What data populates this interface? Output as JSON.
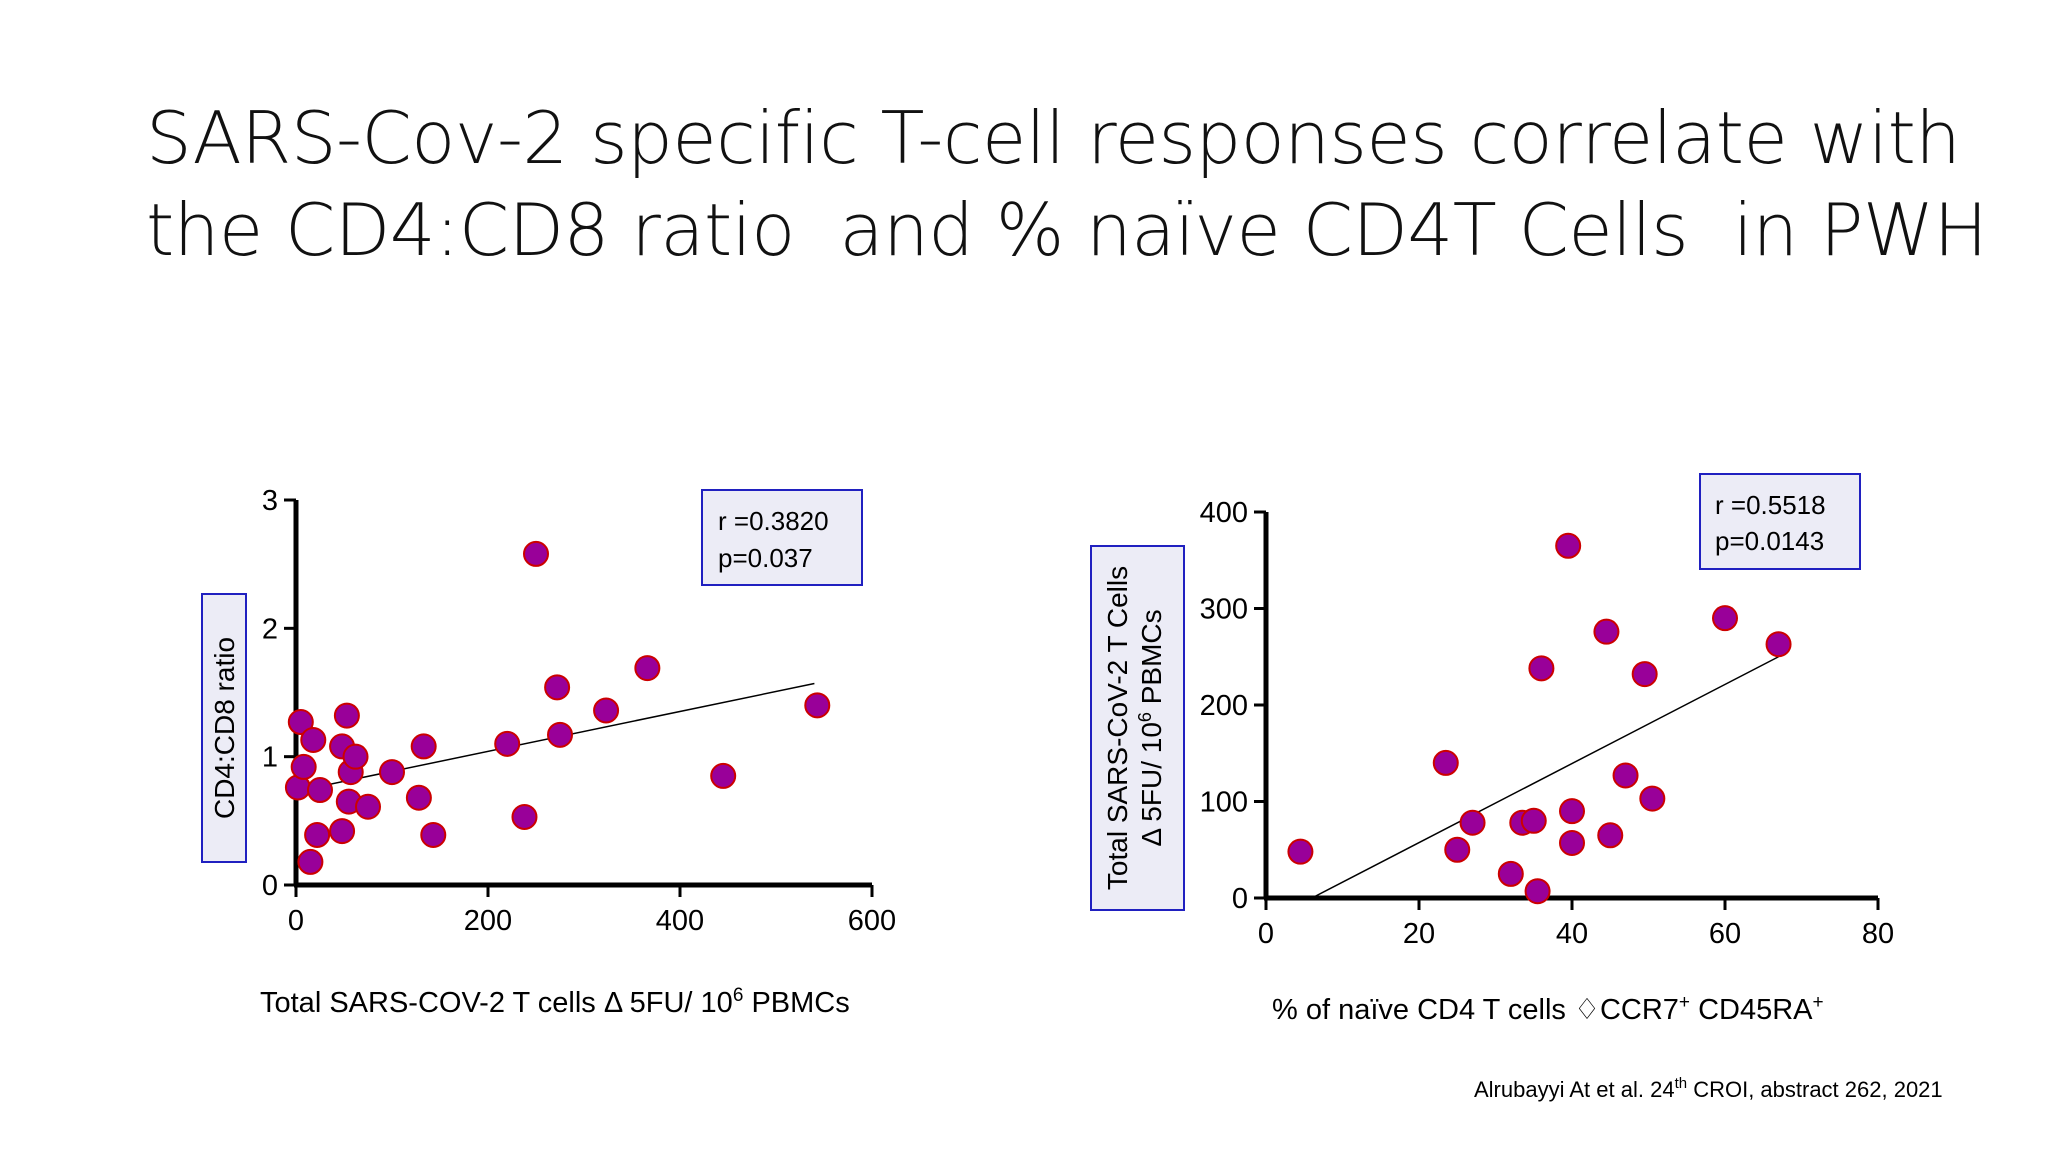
{
  "slide": {
    "title_lines": [
      "SARS-Cov-2 specific T-cell responses correlate with",
      "the CD4:CD8 ratio  and % naïve CD4T Cells  in PWH"
    ],
    "citation": {
      "prefix": "Alrubayyi At et al. 24",
      "sup": "th",
      "suffix": " CROI, abstract 262,  2021"
    }
  },
  "colors": {
    "point_fill": "#990099",
    "point_stroke": "#cc0000",
    "stat_box_border": "#2020c0",
    "stat_box_fill": "#ececf6",
    "trend_line": "#000000",
    "axis": "#000000"
  },
  "chart_data": [
    {
      "type": "scatter",
      "xlabel": {
        "text": "Total SARS-COV-2 T cells Δ 5FU/ 10",
        "sup": "6",
        "suffix": " PBMCs"
      },
      "ylabel": "CD4:CD8 ratio",
      "xlim": [
        0,
        600
      ],
      "ylim": [
        0,
        3
      ],
      "xticks": [
        0,
        200,
        400,
        600
      ],
      "yticks": [
        0,
        1,
        2,
        3
      ],
      "annotation": [
        "r =0.3820",
        "p=0.037"
      ],
      "trendline": {
        "x": [
          0,
          540
        ],
        "y": [
          0.73,
          1.57
        ]
      },
      "points": [
        {
          "x": 2,
          "y": 0.76
        },
        {
          "x": 5,
          "y": 1.27
        },
        {
          "x": 8,
          "y": 0.92
        },
        {
          "x": 15,
          "y": 0.18
        },
        {
          "x": 18,
          "y": 1.13
        },
        {
          "x": 22,
          "y": 0.39
        },
        {
          "x": 25,
          "y": 0.74
        },
        {
          "x": 48,
          "y": 0.42
        },
        {
          "x": 48,
          "y": 1.08
        },
        {
          "x": 53,
          "y": 1.32
        },
        {
          "x": 55,
          "y": 0.65
        },
        {
          "x": 57,
          "y": 0.88
        },
        {
          "x": 62,
          "y": 1.0
        },
        {
          "x": 75,
          "y": 0.61
        },
        {
          "x": 100,
          "y": 0.88
        },
        {
          "x": 128,
          "y": 0.68
        },
        {
          "x": 133,
          "y": 1.08
        },
        {
          "x": 143,
          "y": 0.39
        },
        {
          "x": 220,
          "y": 1.1
        },
        {
          "x": 238,
          "y": 0.53
        },
        {
          "x": 250,
          "y": 2.58
        },
        {
          "x": 272,
          "y": 1.54
        },
        {
          "x": 275,
          "y": 1.17
        },
        {
          "x": 323,
          "y": 1.36
        },
        {
          "x": 366,
          "y": 1.69
        },
        {
          "x": 445,
          "y": 0.85
        },
        {
          "x": 543,
          "y": 1.4
        }
      ]
    },
    {
      "type": "scatter",
      "xlabel": {
        "text": "% of naïve CD4 T cells ♢CCR7",
        "sup": "+",
        "mid": " CD45RA",
        "sup2": "+"
      },
      "ylabel": [
        "Total SARS-CoV-2 T Cells",
        "Δ 5FU/ 10",
        "6",
        " PBMCs"
      ],
      "xlim": [
        0,
        80
      ],
      "ylim": [
        0,
        400
      ],
      "xticks": [
        0,
        20,
        40,
        60,
        80
      ],
      "yticks": [
        0,
        100,
        200,
        300,
        400
      ],
      "annotation": [
        "r =0.5518",
        "p=0.0143"
      ],
      "trendline": {
        "x": [
          6,
          67
        ],
        "y": [
          0,
          250
        ]
      },
      "points": [
        {
          "x": 4.5,
          "y": 48
        },
        {
          "x": 23.5,
          "y": 140
        },
        {
          "x": 25,
          "y": 50
        },
        {
          "x": 27,
          "y": 78
        },
        {
          "x": 32,
          "y": 25
        },
        {
          "x": 33.5,
          "y": 78
        },
        {
          "x": 35,
          "y": 80
        },
        {
          "x": 35.5,
          "y": 7
        },
        {
          "x": 36,
          "y": 238
        },
        {
          "x": 39.5,
          "y": 365
        },
        {
          "x": 40,
          "y": 90
        },
        {
          "x": 40,
          "y": 57
        },
        {
          "x": 44.5,
          "y": 276
        },
        {
          "x": 45,
          "y": 65
        },
        {
          "x": 47,
          "y": 127
        },
        {
          "x": 49.5,
          "y": 232
        },
        {
          "x": 50.5,
          "y": 103
        },
        {
          "x": 60,
          "y": 290
        },
        {
          "x": 67,
          "y": 263
        }
      ]
    }
  ]
}
